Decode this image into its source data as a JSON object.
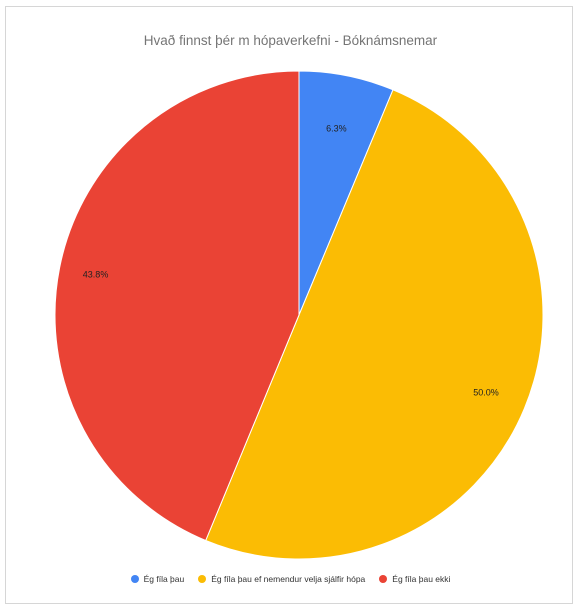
{
  "chart_data": {
    "type": "pie",
    "title": "Hvað finnst þér m hópaverkefni - Bóknámsnemar",
    "labels": [
      "Ég fíla þau",
      "Ég fíla þau ef nemendur velja sjálfir hópa",
      "Ég fíla þau ekki"
    ],
    "values": [
      6.3,
      50.0,
      43.8
    ],
    "value_labels": [
      "6.3%",
      "50.0%",
      "43.8%"
    ],
    "colors": [
      "#4285f4",
      "#fbbc04",
      "#ea4335"
    ],
    "start": "top",
    "direction": "clockwise",
    "legend_position": "bottom"
  }
}
